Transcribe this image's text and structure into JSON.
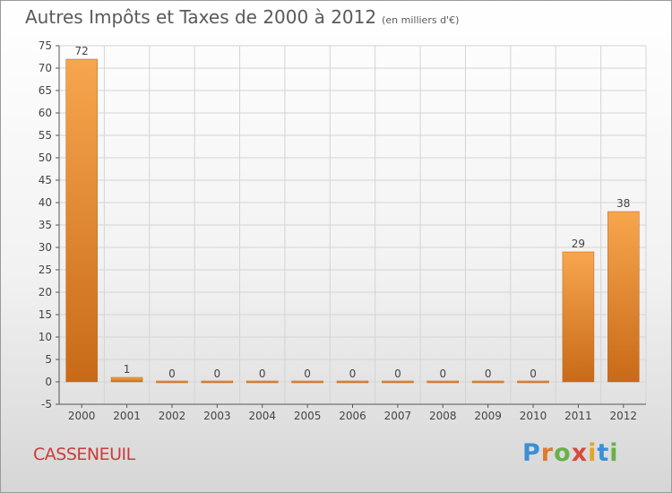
{
  "header": {
    "title": "Autres Impôts et Taxes de 2000 à 2012",
    "unit": "(en milliers d'€)"
  },
  "footer": {
    "commune": "CASSENEUIL",
    "brand": "Proxiti"
  },
  "colors": {
    "bar_light": "#f7a64e",
    "bar_dark": "#c86a18",
    "grid": "#d4d4d4",
    "axis": "#555555"
  },
  "chart_data": {
    "type": "bar",
    "title": "Autres Impôts et Taxes de 2000 à 2012",
    "categories": [
      "2000",
      "2001",
      "2002",
      "2003",
      "2004",
      "2005",
      "2006",
      "2007",
      "2008",
      "2009",
      "2010",
      "2011",
      "2012"
    ],
    "values": [
      72,
      1,
      0,
      0,
      0,
      0,
      0,
      0,
      0,
      0,
      0,
      29,
      38
    ],
    "data_labels": [
      "72",
      "1",
      "0",
      "0",
      "0",
      "0",
      "0",
      "0",
      "0",
      "0",
      "0",
      "29",
      "38"
    ],
    "ylim": [
      -5,
      75
    ],
    "yticks": [
      -5,
      0,
      5,
      10,
      15,
      20,
      25,
      30,
      35,
      40,
      45,
      50,
      55,
      60,
      65,
      70,
      75
    ],
    "grid": true
  }
}
